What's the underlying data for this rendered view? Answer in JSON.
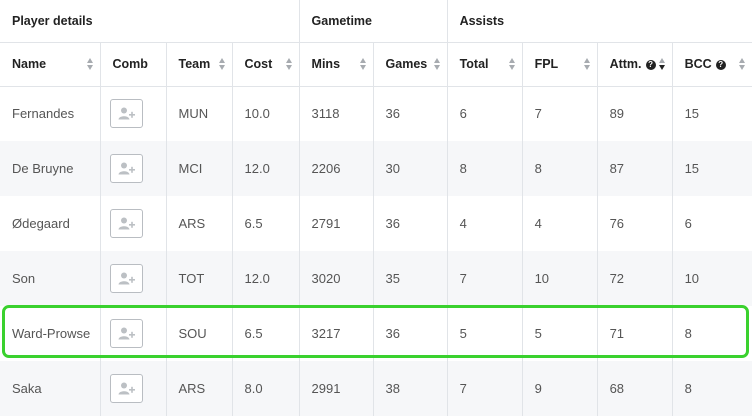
{
  "groups": {
    "player_details": "Player details",
    "gametime": "Gametime",
    "assists": "Assists"
  },
  "columns": {
    "name": "Name",
    "comb": "Comb",
    "team": "Team",
    "cost": "Cost",
    "mins": "Mins",
    "games": "Games",
    "total": "Total",
    "fpl": "FPL",
    "attm": "Attm.",
    "bcc": "BCC"
  },
  "help_glyph": "?",
  "sorted_column": "attm",
  "sort_direction": "descending",
  "highlighted_row": "Ward-Prowse",
  "highlight_color": "#3ad12e",
  "comb_icon": "add-user-icon",
  "rows": [
    {
      "name": "Fernandes",
      "team": "MUN",
      "cost": "10.0",
      "mins": "3118",
      "games": "36",
      "total": "6",
      "fpl": "7",
      "attm": "89",
      "bcc": "15"
    },
    {
      "name": "De Bruyne",
      "team": "MCI",
      "cost": "12.0",
      "mins": "2206",
      "games": "30",
      "total": "8",
      "fpl": "8",
      "attm": "87",
      "bcc": "15"
    },
    {
      "name": "Ødegaard",
      "team": "ARS",
      "cost": "6.5",
      "mins": "2791",
      "games": "36",
      "total": "4",
      "fpl": "4",
      "attm": "76",
      "bcc": "6"
    },
    {
      "name": "Son",
      "team": "TOT",
      "cost": "12.0",
      "mins": "3020",
      "games": "35",
      "total": "7",
      "fpl": "10",
      "attm": "72",
      "bcc": "10"
    },
    {
      "name": "Ward-Prowse",
      "team": "SOU",
      "cost": "6.5",
      "mins": "3217",
      "games": "36",
      "total": "5",
      "fpl": "5",
      "attm": "71",
      "bcc": "8"
    },
    {
      "name": "Saka",
      "team": "ARS",
      "cost": "8.0",
      "mins": "2991",
      "games": "38",
      "total": "7",
      "fpl": "9",
      "attm": "68",
      "bcc": "8"
    }
  ]
}
